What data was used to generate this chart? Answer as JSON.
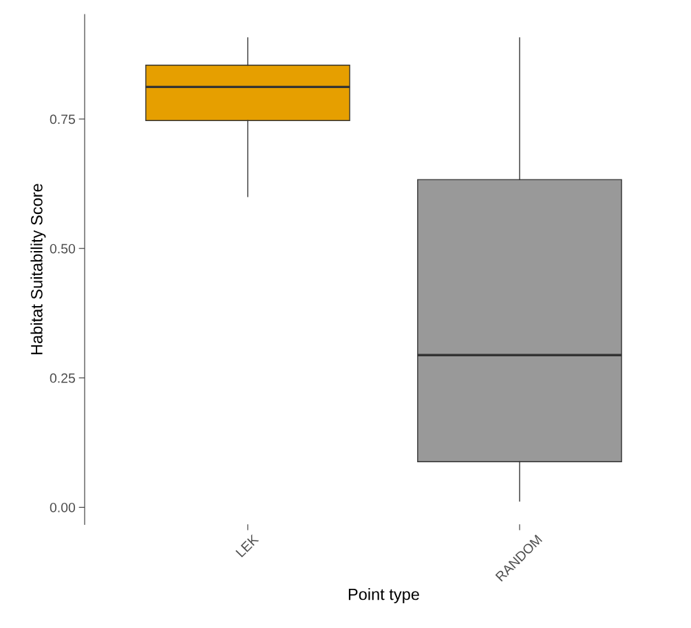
{
  "chart_data": {
    "type": "box",
    "xlabel": "Point type",
    "ylabel": "Habitat Suitability Score",
    "categories": [
      "LEK",
      "RANDOM"
    ],
    "colors": [
      "#e69f00",
      "#999999"
    ],
    "boxes": [
      {
        "low": 0.6,
        "q1": 0.747,
        "median": 0.812,
        "q3": 0.854,
        "high": 0.907
      },
      {
        "low": 0.012,
        "q1": 0.088,
        "median": 0.294,
        "q3": 0.633,
        "high": 0.907
      }
    ],
    "ylim": [
      -0.033,
      0.952
    ],
    "yticks": [
      {
        "value": 0,
        "label": "0.00"
      },
      {
        "value": 0.25,
        "label": "0.25"
      },
      {
        "value": 0.5,
        "label": "0.50"
      },
      {
        "value": 0.75,
        "label": "0.75"
      }
    ],
    "grid": false,
    "legend": false
  }
}
